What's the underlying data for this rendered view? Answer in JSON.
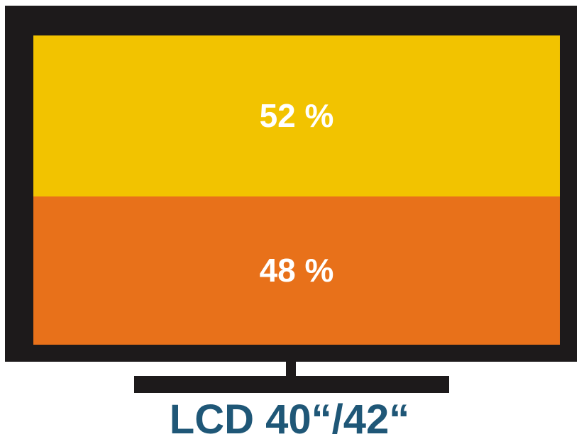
{
  "chart_data": {
    "type": "bar",
    "stacked": true,
    "title": "LCD 40“/42“",
    "series": [
      {
        "value": 52,
        "label": "52 %",
        "color": "#f2c300"
      },
      {
        "value": 48,
        "label": "48 %",
        "color": "#e8711a"
      }
    ],
    "unit": "%"
  },
  "colors": {
    "frame": "#1d1a1b",
    "caption": "#1f5777",
    "label_text": "#ffffff"
  }
}
